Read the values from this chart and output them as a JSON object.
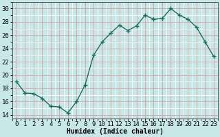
{
  "x": [
    0,
    1,
    2,
    3,
    4,
    5,
    6,
    7,
    8,
    9,
    10,
    11,
    12,
    13,
    14,
    15,
    16,
    17,
    18,
    19,
    20,
    21,
    22,
    23
  ],
  "y": [
    19.0,
    17.3,
    17.2,
    16.5,
    15.3,
    15.2,
    14.3,
    16.0,
    18.5,
    23.0,
    25.0,
    26.3,
    27.5,
    26.7,
    27.4,
    29.0,
    28.4,
    28.5,
    30.0,
    29.0,
    28.4,
    27.2,
    25.0,
    22.8
  ],
  "line_color": "#1a6b5a",
  "marker": "+",
  "marker_size": 5,
  "bg_color": "#c8e8e8",
  "grid_major_color": "#d8a0a0",
  "grid_minor_color": "#ffffff",
  "xlabel": "Humidex (Indice chaleur)",
  "xlim": [
    -0.5,
    23.5
  ],
  "ylim": [
    13.5,
    31
  ],
  "yticks": [
    14,
    16,
    18,
    20,
    22,
    24,
    26,
    28,
    30
  ],
  "xtick_labels": [
    "0",
    "1",
    "2",
    "3",
    "4",
    "5",
    "6",
    "7",
    "8",
    "9",
    "10",
    "11",
    "12",
    "13",
    "14",
    "15",
    "16",
    "17",
    "18",
    "19",
    "20",
    "21",
    "22",
    "23"
  ],
  "label_fontsize": 7,
  "tick_fontsize": 6.5
}
